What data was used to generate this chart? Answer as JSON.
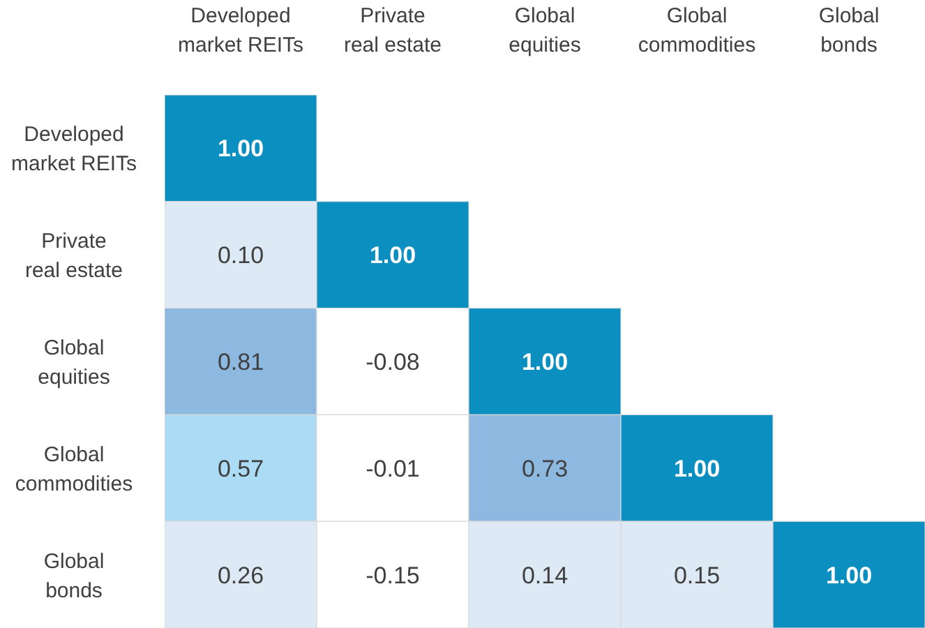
{
  "chart_data": {
    "type": "heatmap",
    "categories": [
      "Developed market REITs",
      "Private real estate",
      "Global equities",
      "Global commodities",
      "Global bonds"
    ],
    "y_categories": [
      "Developed market REITs",
      "Private real estate",
      "Global equities",
      "Global commodities",
      "Global bonds"
    ],
    "cells": [
      [
        1.0,
        null,
        null,
        null,
        null
      ],
      [
        0.1,
        1.0,
        null,
        null,
        null
      ],
      [
        0.81,
        -0.08,
        1.0,
        null,
        null
      ],
      [
        0.57,
        -0.01,
        0.73,
        1.0,
        null
      ],
      [
        0.26,
        -0.15,
        0.14,
        0.15,
        1.0
      ]
    ],
    "cell_labels": [
      [
        "1.00",
        null,
        null,
        null,
        null
      ],
      [
        "0.10",
        "1.00",
        null,
        null,
        null
      ],
      [
        "0.81",
        "-0.08",
        "1.00",
        null,
        null
      ],
      [
        "0.57",
        "-0.01",
        "0.73",
        "1.00",
        null
      ],
      [
        "0.26",
        "-0.15",
        "0.14",
        "0.15",
        "1.00"
      ]
    ],
    "colors": [
      [
        "#0a8fc0",
        null,
        null,
        null,
        null
      ],
      [
        "#dde9f5",
        "#0a8fc0",
        null,
        null,
        null
      ],
      [
        "#8db8e0",
        "#ffffff",
        "#0a8fc0",
        null,
        null
      ],
      [
        "#acdcf5",
        "#ffffff",
        "#8db8e0",
        "#0a8fc0",
        null
      ],
      [
        "#dde9f5",
        "#ffffff",
        "#dde9f5",
        "#dde9f5",
        "#0a8fc0"
      ]
    ]
  }
}
